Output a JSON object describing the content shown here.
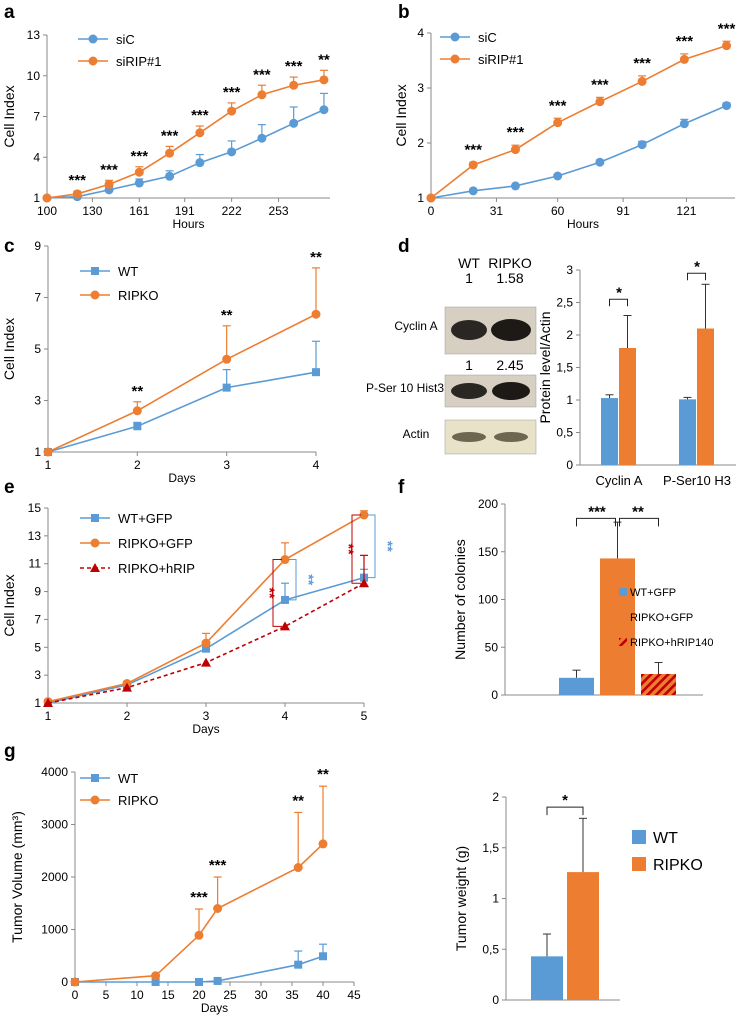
{
  "colors": {
    "blue": "#5b9bd5",
    "orange": "#ed7d31",
    "red": "#c00000",
    "text": "#000000",
    "axis": "#888888"
  },
  "chart_data": [
    {
      "panel": "a",
      "type": "line",
      "xlabel": "Hours",
      "ylabel": "Cell Index",
      "xlim": [
        100,
        287
      ],
      "ylim": [
        1,
        13
      ],
      "xticks": [
        100,
        130,
        161,
        191,
        222,
        253
      ],
      "yticks": [
        1,
        4,
        7,
        10,
        13
      ],
      "legend": "top-left",
      "series": [
        {
          "name": "siC",
          "color": "blue",
          "marker": "circle",
          "x": [
            100,
            120,
            141,
            161,
            181,
            201,
            222,
            242,
            263,
            283
          ],
          "y": [
            1.0,
            1.1,
            1.6,
            2.1,
            2.6,
            3.6,
            4.4,
            5.4,
            6.5,
            7.5
          ],
          "err": [
            0,
            0.1,
            0.2,
            0.3,
            0.4,
            0.6,
            0.8,
            1.0,
            1.2,
            1.2
          ]
        },
        {
          "name": "siRIP#1",
          "color": "orange",
          "marker": "circle",
          "x": [
            100,
            120,
            141,
            161,
            181,
            201,
            222,
            242,
            263,
            283
          ],
          "y": [
            1.0,
            1.3,
            2.0,
            2.9,
            4.3,
            5.8,
            7.4,
            8.6,
            9.3,
            9.7
          ],
          "err": [
            0,
            0.2,
            0.3,
            0.4,
            0.5,
            0.5,
            0.6,
            0.7,
            0.6,
            0.7
          ]
        }
      ],
      "annotations": [
        {
          "x": 120,
          "text": "***"
        },
        {
          "x": 141,
          "text": "***"
        },
        {
          "x": 161,
          "text": "***"
        },
        {
          "x": 181,
          "text": "***"
        },
        {
          "x": 201,
          "text": "***"
        },
        {
          "x": 222,
          "text": "***"
        },
        {
          "x": 242,
          "text": "***"
        },
        {
          "x": 263,
          "text": "***"
        },
        {
          "x": 283,
          "text": "**"
        }
      ]
    },
    {
      "panel": "b",
      "type": "line",
      "xlabel": "Hours",
      "ylabel": "Cell Index",
      "xlim": [
        0,
        144
      ],
      "ylim": [
        1,
        4
      ],
      "xticks": [
        0,
        31,
        60,
        91,
        121
      ],
      "yticks": [
        1,
        2,
        3,
        4
      ],
      "legend": "top-left",
      "series": [
        {
          "name": "siC",
          "color": "blue",
          "marker": "circle",
          "x": [
            0,
            20,
            40,
            60,
            80,
            100,
            120,
            140
          ],
          "y": [
            1.0,
            1.13,
            1.22,
            1.4,
            1.65,
            1.97,
            2.35,
            2.68
          ],
          "err": [
            0,
            0.02,
            0.02,
            0.03,
            0.04,
            0.06,
            0.08,
            0.05
          ]
        },
        {
          "name": "siRIP#1",
          "color": "orange",
          "marker": "circle",
          "x": [
            0,
            20,
            40,
            60,
            80,
            100,
            120,
            140
          ],
          "y": [
            1.0,
            1.6,
            1.88,
            2.37,
            2.75,
            3.12,
            3.52,
            3.77
          ],
          "err": [
            0,
            0.05,
            0.08,
            0.08,
            0.08,
            0.1,
            0.1,
            0.08
          ]
        }
      ],
      "annotations": [
        {
          "x": 20,
          "text": "***"
        },
        {
          "x": 40,
          "text": "***"
        },
        {
          "x": 60,
          "text": "***"
        },
        {
          "x": 80,
          "text": "***"
        },
        {
          "x": 100,
          "text": "***"
        },
        {
          "x": 120,
          "text": "***"
        },
        {
          "x": 140,
          "text": "***"
        }
      ]
    },
    {
      "panel": "c",
      "type": "line",
      "xlabel": "Days",
      "ylabel": "Cell Index",
      "xlim": [
        1,
        4
      ],
      "ylim": [
        1,
        9
      ],
      "xticks": [
        1,
        2,
        3,
        4
      ],
      "yticks": [
        1,
        3,
        5,
        7,
        9
      ],
      "legend": "top-left",
      "series": [
        {
          "name": "WT",
          "color": "blue",
          "marker": "square",
          "x": [
            1,
            2,
            3,
            4
          ],
          "y": [
            1.0,
            2.0,
            3.5,
            4.1
          ],
          "err": [
            0,
            0.15,
            0.7,
            1.2
          ]
        },
        {
          "name": "RIPKO",
          "color": "orange",
          "marker": "circle",
          "x": [
            1,
            2,
            3,
            4
          ],
          "y": [
            1.0,
            2.6,
            4.6,
            6.35
          ],
          "err": [
            0,
            0.35,
            1.3,
            1.8
          ]
        }
      ],
      "annotations": [
        {
          "x": 2,
          "text": "**"
        },
        {
          "x": 3,
          "text": "**"
        },
        {
          "x": 4,
          "text": "**"
        }
      ]
    },
    {
      "panel": "d",
      "type": "bar",
      "ylabel": "Protein level/Actin",
      "categories": [
        "Cyclin A",
        "P-Ser10 H3"
      ],
      "ylim": [
        0,
        3
      ],
      "yticks": [
        0,
        0.5,
        1,
        1.5,
        2,
        2.5,
        3
      ],
      "ytick_labels": [
        "0",
        "0,5",
        "1",
        "1,5",
        "2",
        "2,5",
        "3"
      ],
      "series": [
        {
          "name": "WT",
          "color": "blue",
          "values": [
            1.03,
            1.01
          ],
          "err": [
            0.05,
            0.03
          ]
        },
        {
          "name": "RIPKO",
          "color": "orange",
          "values": [
            1.8,
            2.1
          ],
          "err": [
            0.5,
            0.68
          ]
        }
      ],
      "annotations": [
        "*",
        "*"
      ]
    },
    {
      "panel": "e",
      "type": "line",
      "xlabel": "Days",
      "ylabel": "Cell Index",
      "xlim": [
        1,
        5
      ],
      "ylim": [
        1,
        15
      ],
      "xticks": [
        1,
        2,
        3,
        4,
        5
      ],
      "yticks": [
        1,
        3,
        5,
        7,
        9,
        11,
        13,
        15
      ],
      "legend": "top-left",
      "series": [
        {
          "name": "WT+GFP",
          "color": "blue",
          "marker": "square",
          "dash": false,
          "x": [
            1,
            2,
            3,
            4,
            5
          ],
          "y": [
            1.0,
            2.3,
            4.9,
            8.4,
            10.0
          ],
          "err": [
            0,
            0.1,
            0.5,
            1.2,
            0.6
          ]
        },
        {
          "name": "RIPKO+GFP",
          "color": "orange",
          "marker": "circle",
          "dash": false,
          "x": [
            1,
            2,
            3,
            4,
            5
          ],
          "y": [
            1.1,
            2.4,
            5.3,
            11.3,
            14.5
          ],
          "err": [
            0,
            0.1,
            0.7,
            1.2,
            0.3
          ]
        },
        {
          "name": "RIPKO+hRIP",
          "color": "red",
          "marker": "triangle",
          "dash": true,
          "x": [
            1,
            2,
            3,
            4,
            5
          ],
          "y": [
            1.0,
            2.1,
            3.9,
            6.5,
            9.6
          ],
          "err": [
            0,
            0,
            0,
            0,
            2.0
          ]
        }
      ],
      "annotations": [
        {
          "x": 4,
          "text": "**",
          "color": "red"
        },
        {
          "x": 4,
          "text": "**",
          "color": "blue"
        },
        {
          "x": 5,
          "text": "**",
          "color": "red"
        },
        {
          "x": 5,
          "text": "**",
          "color": "blue"
        }
      ]
    },
    {
      "panel": "f",
      "type": "bar",
      "ylabel": "Number of colonies",
      "categories": [
        "WT+GFP",
        "RIPKO+GFP",
        "RIPKO+hRIP140"
      ],
      "ylim": [
        0,
        200
      ],
      "yticks": [
        0,
        50,
        100,
        150,
        200
      ],
      "values": [
        18,
        143,
        22
      ],
      "err": [
        8,
        38,
        12
      ],
      "colors": [
        "blue",
        "orange",
        "hatched-orange-red"
      ],
      "annotations": [
        "***",
        "**"
      ]
    },
    {
      "panel": "g-left",
      "type": "line",
      "xlabel": "Days",
      "ylabel": "Tumor Volume (mm³)",
      "xlim": [
        0,
        45
      ],
      "ylim": [
        0,
        4000
      ],
      "xticks": [
        0,
        5,
        10,
        15,
        20,
        25,
        30,
        35,
        40,
        45
      ],
      "yticks": [
        0,
        1000,
        2000,
        3000,
        4000
      ],
      "legend": "top-left",
      "series": [
        {
          "name": "WT",
          "color": "blue",
          "marker": "square",
          "x": [
            0,
            13,
            20,
            23,
            36,
            40
          ],
          "y": [
            0,
            0,
            0,
            20,
            330,
            490
          ],
          "err": [
            0,
            0,
            0,
            0,
            260,
            230
          ]
        },
        {
          "name": "RIPKO",
          "color": "orange",
          "marker": "circle",
          "x": [
            0,
            13,
            20,
            23,
            36,
            40
          ],
          "y": [
            0,
            120,
            890,
            1400,
            2180,
            2630
          ],
          "err": [
            0,
            0,
            500,
            600,
            1050,
            1100
          ]
        }
      ],
      "annotations": [
        {
          "x": 20,
          "text": "***"
        },
        {
          "x": 23,
          "text": "***"
        },
        {
          "x": 36,
          "text": "**"
        },
        {
          "x": 40,
          "text": "**"
        }
      ]
    },
    {
      "panel": "g-right",
      "type": "bar",
      "ylabel": "Tumor weight (g)",
      "categories": [
        "WT",
        "RIPKO"
      ],
      "ylim": [
        0,
        2
      ],
      "yticks": [
        0,
        0.5,
        1,
        1.5,
        2
      ],
      "ytick_labels": [
        "0",
        "0,5",
        "1",
        "1,5",
        "2"
      ],
      "values": [
        0.43,
        1.26
      ],
      "err": [
        0.22,
        0.53
      ],
      "colors": [
        "blue",
        "orange"
      ],
      "legend": "right",
      "annotations": [
        "*"
      ]
    }
  ],
  "western": {
    "col_headers": [
      "WT",
      "RIPKO"
    ],
    "rows": [
      {
        "label": "Cyclin A",
        "values": [
          "1",
          "1.58"
        ]
      },
      {
        "label": "P-Ser 10 Hist3",
        "values": [
          "1",
          "2.45"
        ]
      },
      {
        "label": "Actin",
        "values": [
          "",
          ""
        ]
      }
    ]
  },
  "panel_letters": [
    "a",
    "b",
    "c",
    "d",
    "e",
    "f",
    "g"
  ]
}
